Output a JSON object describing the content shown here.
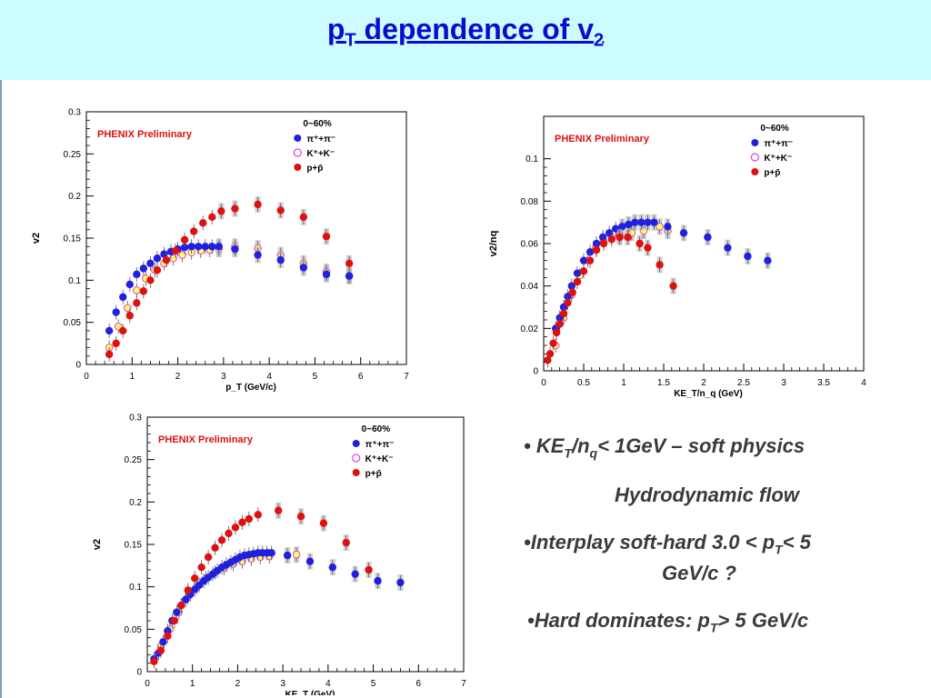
{
  "header": {
    "title_main": "p",
    "title_sub_T": "T",
    "title_rest": " dependence of v",
    "title_sub_2": "2"
  },
  "chart_data": [
    {
      "type": "scatter",
      "title": "",
      "xlabel": "p_T (GeV/c)",
      "ylabel": "v2",
      "xlim": [
        0,
        7
      ],
      "ylim": [
        0,
        0.3
      ],
      "xticks": [
        "0",
        "1",
        "2",
        "3",
        "4",
        "5",
        "6",
        "7"
      ],
      "yticks": [
        "0",
        "0.05",
        "0.1",
        "0.15",
        "0.2",
        "0.25",
        "0.3"
      ],
      "annotation": "PHENIX Preliminary",
      "legend_title": "0~60%",
      "legend_pos": "top-right",
      "series": [
        {
          "name": "π⁺+π⁻",
          "color": "#2020e0",
          "marker": "circle",
          "x": [
            0.5,
            0.65,
            0.8,
            0.95,
            1.1,
            1.25,
            1.4,
            1.55,
            1.7,
            1.85,
            2.0,
            2.15,
            2.3,
            2.45,
            2.6,
            2.75,
            2.9,
            3.25,
            3.75,
            4.25,
            4.75,
            5.25,
            5.75
          ],
          "y": [
            0.04,
            0.062,
            0.08,
            0.095,
            0.107,
            0.114,
            0.12,
            0.126,
            0.131,
            0.134,
            0.137,
            0.139,
            0.14,
            0.14,
            0.14,
            0.14,
            0.14,
            0.137,
            0.13,
            0.124,
            0.115,
            0.107,
            0.105
          ]
        },
        {
          "name": "K⁺+K⁻",
          "color": "#e040e0",
          "marker": "open-circle",
          "x": [
            0.5,
            0.7,
            0.9,
            1.1,
            1.3,
            1.5,
            1.7,
            1.9,
            2.1,
            2.3,
            2.5,
            2.7,
            2.9,
            3.25,
            3.75,
            4.25,
            4.75,
            5.25,
            5.75
          ],
          "y": [
            0.02,
            0.045,
            0.067,
            0.088,
            0.102,
            0.112,
            0.12,
            0.126,
            0.13,
            0.133,
            0.135,
            0.136,
            0.137,
            0.14,
            0.138,
            0.13,
            0.12,
            0.11,
            0.105
          ]
        },
        {
          "name": "p+p̄",
          "color": "#e01010",
          "marker": "circle",
          "x": [
            0.5,
            0.65,
            0.8,
            0.95,
            1.1,
            1.25,
            1.4,
            1.55,
            1.75,
            1.95,
            2.15,
            2.35,
            2.55,
            2.75,
            2.95,
            3.25,
            3.75,
            4.25,
            4.75,
            5.25,
            5.75
          ],
          "y": [
            0.012,
            0.025,
            0.04,
            0.058,
            0.073,
            0.087,
            0.1,
            0.112,
            0.124,
            0.135,
            0.148,
            0.158,
            0.168,
            0.175,
            0.182,
            0.185,
            0.19,
            0.183,
            0.175,
            0.152,
            0.12
          ]
        }
      ]
    },
    {
      "type": "scatter",
      "title": "",
      "xlabel": "KE_T/n_q (GeV)",
      "ylabel": "v2/nq",
      "xlim": [
        0,
        4
      ],
      "ylim": [
        0,
        0.12
      ],
      "xticks": [
        "0",
        "0.5",
        "1",
        "1.5",
        "2",
        "2.5",
        "3",
        "3.5",
        "4"
      ],
      "yticks": [
        "0",
        "0.02",
        "0.04",
        "0.06",
        "0.08",
        "0.1"
      ],
      "annotation": "PHENIX Preliminary",
      "legend_title": "0~60%",
      "legend_pos": "top-right",
      "series": [
        {
          "name": "π⁺+π⁻",
          "color": "#2020e0",
          "marker": "circle",
          "x": [
            0.15,
            0.2,
            0.25,
            0.3,
            0.35,
            0.42,
            0.5,
            0.58,
            0.66,
            0.74,
            0.82,
            0.9,
            0.98,
            1.06,
            1.14,
            1.22,
            1.3,
            1.38,
            1.55,
            1.75,
            2.05,
            2.3,
            2.55,
            2.8
          ],
          "y": [
            0.02,
            0.025,
            0.03,
            0.035,
            0.04,
            0.046,
            0.052,
            0.056,
            0.06,
            0.063,
            0.065,
            0.067,
            0.068,
            0.069,
            0.07,
            0.07,
            0.07,
            0.07,
            0.068,
            0.065,
            0.063,
            0.058,
            0.054,
            0.052
          ]
        },
        {
          "name": "K⁺+K⁻",
          "color": "#e040e0",
          "marker": "open-circle",
          "x": [
            0.15,
            0.25,
            0.35,
            0.45,
            0.55,
            0.65,
            0.75,
            0.85,
            0.95,
            1.1,
            1.25,
            1.45,
            1.55
          ],
          "y": [
            0.012,
            0.025,
            0.036,
            0.045,
            0.052,
            0.058,
            0.061,
            0.063,
            0.064,
            0.065,
            0.066,
            0.068,
            0.066
          ]
        },
        {
          "name": "p+p̄",
          "color": "#e01010",
          "marker": "circle",
          "x": [
            0.05,
            0.08,
            0.12,
            0.16,
            0.2,
            0.25,
            0.3,
            0.36,
            0.42,
            0.5,
            0.58,
            0.66,
            0.75,
            0.85,
            0.95,
            1.05,
            1.2,
            1.3,
            1.45,
            1.62
          ],
          "y": [
            0.005,
            0.008,
            0.013,
            0.018,
            0.022,
            0.027,
            0.032,
            0.037,
            0.042,
            0.047,
            0.052,
            0.057,
            0.06,
            0.062,
            0.063,
            0.063,
            0.06,
            0.058,
            0.05,
            0.04
          ]
        }
      ]
    },
    {
      "type": "scatter",
      "title": "",
      "xlabel": "KE_T (GeV)",
      "ylabel": "v2",
      "xlim": [
        0,
        7
      ],
      "ylim": [
        0,
        0.3
      ],
      "xticks": [
        "0",
        "1",
        "2",
        "3",
        "4",
        "5",
        "6",
        "7"
      ],
      "yticks": [
        "0",
        "0.05",
        "0.1",
        "0.15",
        "0.2",
        "0.25",
        "0.3"
      ],
      "annotation": "PHENIX Preliminary",
      "legend_title": "0~60%",
      "legend_pos": "top-right",
      "series": [
        {
          "name": "π⁺+π⁻",
          "color": "#2020e0",
          "marker": "circle",
          "x": [
            0.15,
            0.25,
            0.35,
            0.45,
            0.55,
            0.65,
            0.75,
            0.85,
            0.95,
            1.05,
            1.15,
            1.25,
            1.35,
            1.45,
            1.55,
            1.65,
            1.75,
            1.85,
            1.95,
            2.05,
            2.15,
            2.25,
            2.35,
            2.45,
            2.55,
            2.65,
            2.75,
            3.1,
            3.6,
            4.1,
            4.6,
            5.1,
            5.6
          ],
          "y": [
            0.015,
            0.022,
            0.035,
            0.048,
            0.06,
            0.07,
            0.078,
            0.085,
            0.091,
            0.097,
            0.102,
            0.107,
            0.111,
            0.115,
            0.119,
            0.123,
            0.126,
            0.129,
            0.132,
            0.135,
            0.137,
            0.138,
            0.139,
            0.14,
            0.14,
            0.14,
            0.14,
            0.137,
            0.13,
            0.123,
            0.115,
            0.107,
            0.105
          ]
        },
        {
          "name": "K⁺+K⁻",
          "color": "#e040e0",
          "marker": "open-circle",
          "x": [
            0.3,
            0.5,
            0.7,
            0.9,
            1.1,
            1.3,
            1.5,
            1.7,
            1.9,
            2.1,
            2.3,
            2.5,
            2.7,
            3.3
          ],
          "y": [
            0.03,
            0.05,
            0.07,
            0.088,
            0.1,
            0.11,
            0.117,
            0.122,
            0.127,
            0.13,
            0.133,
            0.135,
            0.136,
            0.138
          ]
        },
        {
          "name": "p+p̄",
          "color": "#e01010",
          "marker": "circle",
          "x": [
            0.15,
            0.3,
            0.45,
            0.6,
            0.75,
            0.9,
            1.05,
            1.2,
            1.35,
            1.5,
            1.65,
            1.8,
            1.95,
            2.1,
            2.25,
            2.45,
            2.9,
            3.4,
            3.9,
            4.4,
            4.9
          ],
          "y": [
            0.012,
            0.025,
            0.042,
            0.06,
            0.078,
            0.096,
            0.11,
            0.123,
            0.135,
            0.146,
            0.155,
            0.163,
            0.17,
            0.176,
            0.18,
            0.185,
            0.19,
            0.183,
            0.175,
            0.152,
            0.12
          ]
        }
      ]
    }
  ],
  "bullets": {
    "b1": {
      "prefix": "• KE",
      "sub1": "T",
      "mid": "/n",
      "sub2": "q",
      "rest": "< 1GeV – soft physics"
    },
    "b2": "Hydrodynamic flow",
    "b3": {
      "prefix": "•Interplay soft-hard 3.0 < p",
      "sub": "T",
      "rest": "< 5"
    },
    "b3b": "GeV/c ?",
    "b4": {
      "prefix": "•Hard dominates: p",
      "sub": "T",
      "rest": "> 5 GeV/c"
    }
  }
}
